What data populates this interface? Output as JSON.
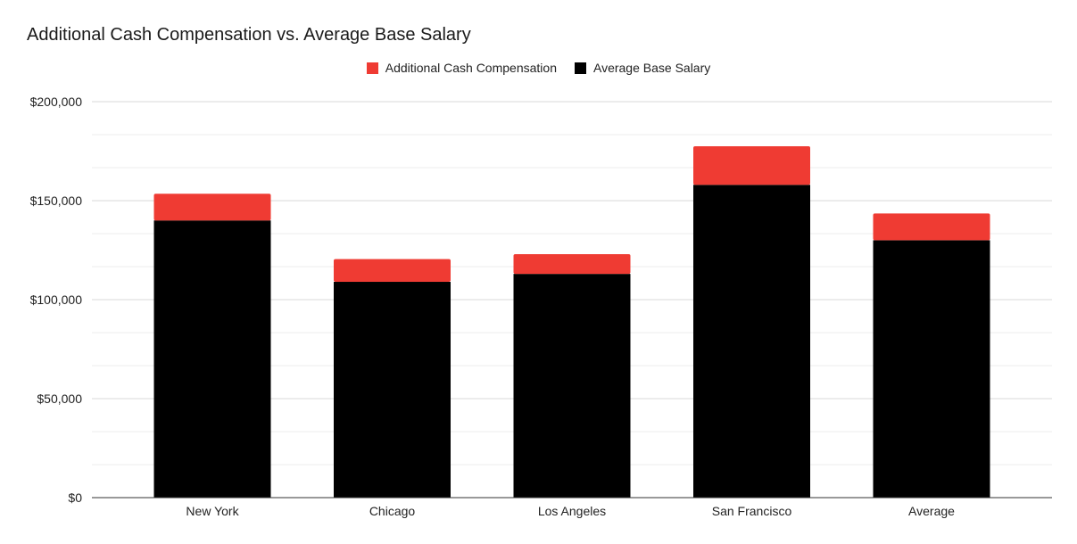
{
  "chart_data": {
    "type": "bar",
    "stacked": true,
    "title": "Additional Cash Compensation vs. Average Base Salary",
    "xlabel": "",
    "ylabel": "",
    "categories": [
      "New York",
      "Chicago",
      "Los Angeles",
      "San Francisco",
      "Average"
    ],
    "series": [
      {
        "name": "Average Base Salary",
        "color": "#000000",
        "values": [
          140000,
          109000,
          113000,
          158000,
          130000
        ]
      },
      {
        "name": "Additional Cash Compensation",
        "color": "#ef3b33",
        "values": [
          13500,
          11500,
          10000,
          19500,
          13500
        ]
      }
    ],
    "legend_order": [
      "Additional Cash Compensation",
      "Average Base Salary"
    ],
    "ylim": [
      0,
      200000
    ],
    "yticks": [
      0,
      50000,
      100000,
      150000,
      200000
    ],
    "ytick_labels": [
      "$0",
      "$50,000",
      "$100,000",
      "$150,000",
      "$200,000"
    ],
    "minor_grid_step": 16666.67,
    "grid": true,
    "legend_position": "top-center"
  }
}
